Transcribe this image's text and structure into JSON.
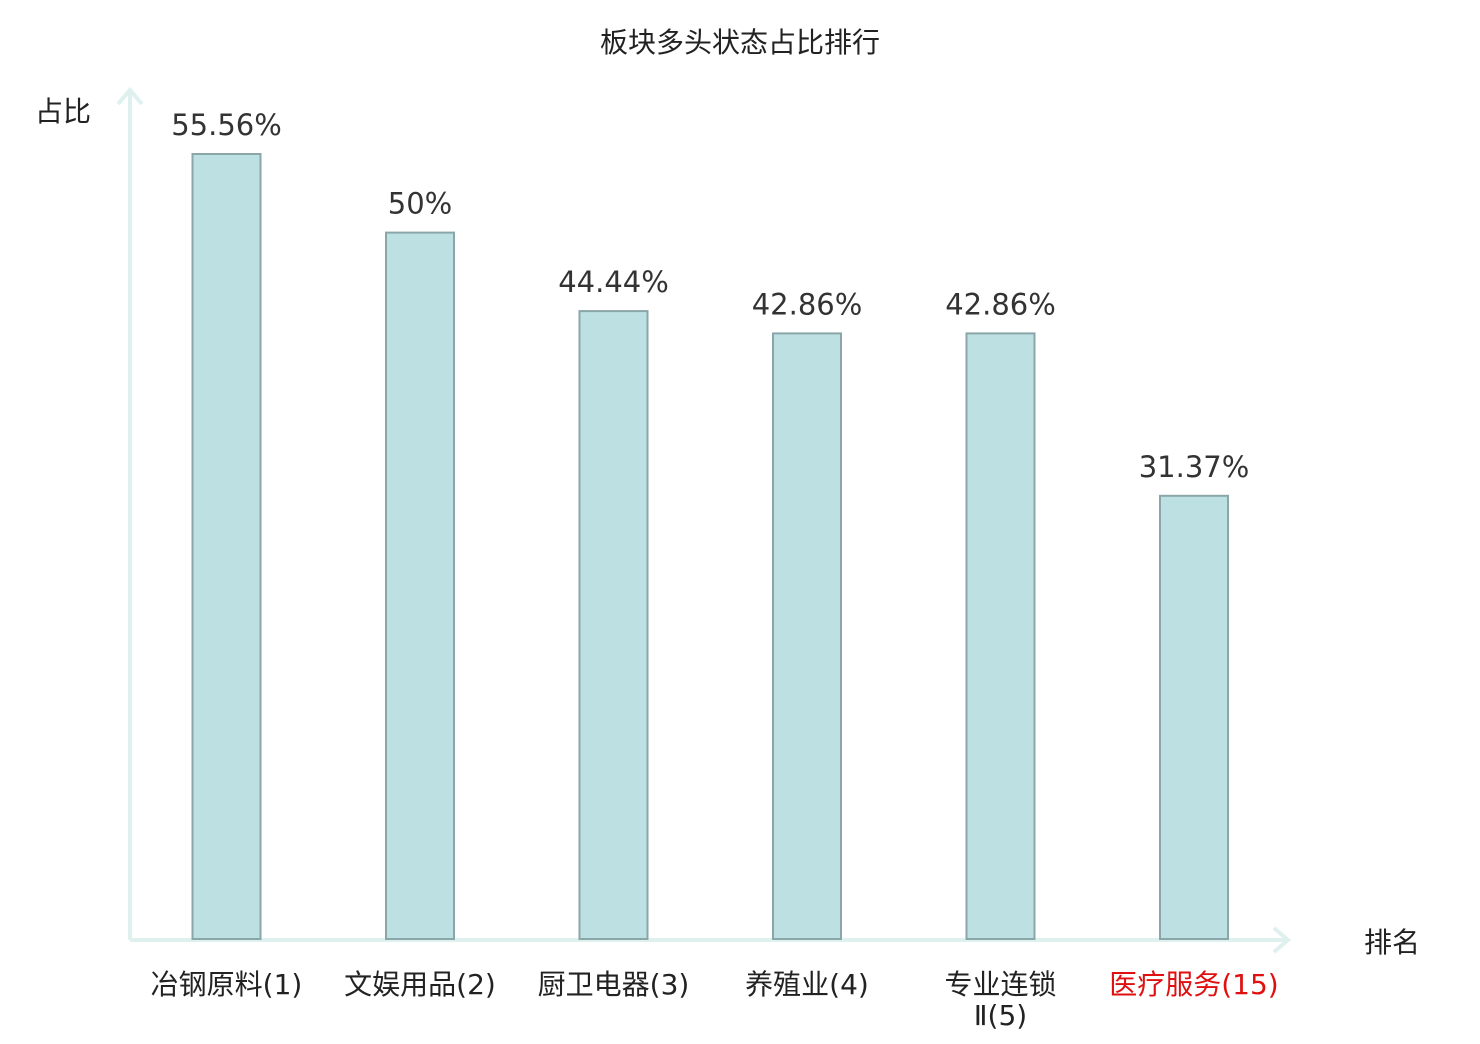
{
  "chart_data": {
    "type": "bar",
    "title": "板块多头状态占比排行",
    "ylabel": "占比",
    "xlabel": "排名",
    "categories": [
      "冶钢原料(1)",
      "文娱用品(2)",
      "厨卫电器(3)",
      "养殖业(4)",
      "专业连锁Ⅱ(5)",
      "医疗服务(15)"
    ],
    "category_lines": [
      [
        "冶钢原料(1)"
      ],
      [
        "文娱用品(2)"
      ],
      [
        "厨卫电器(3)"
      ],
      [
        "养殖业(4)"
      ],
      [
        "专业连锁",
        "Ⅱ(5)"
      ],
      [
        "医疗服务(15)"
      ]
    ],
    "values": [
      55.56,
      50,
      44.44,
      42.86,
      42.86,
      31.37
    ],
    "value_labels": [
      "55.56%",
      "50%",
      "44.44%",
      "42.86%",
      "42.86%",
      "31.37%"
    ],
    "ylim": [
      0,
      55.56
    ],
    "grid": false,
    "highlight_index": 5,
    "colors": {
      "bar_fill": "#bde0e3",
      "bar_stroke": "#8aa6a9",
      "axis": "#dff1ef",
      "text": "#333333",
      "label": "#222222",
      "highlight": "#e01010"
    }
  }
}
